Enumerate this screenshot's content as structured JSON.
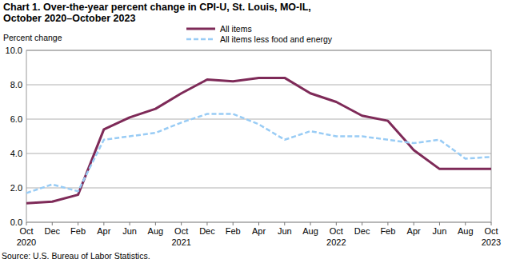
{
  "chart_data": {
    "type": "line",
    "title": "Chart 1. Over-the-year percent change in CPI-U, St. Louis, MO-IL,\nOctober 2020–October 2023",
    "y_label": "Percent change",
    "source": "Source: U.S. Bureau of Labor Statistics.",
    "categories": [
      "Oct\n2020",
      "Dec",
      "Feb",
      "Apr",
      "Jun",
      "Aug",
      "Oct\n2021",
      "Dec",
      "Feb",
      "Apr",
      "Jun",
      "Aug",
      "Oct\n2022",
      "Dec",
      "Feb",
      "Apr",
      "Jun",
      "Aug",
      "Oct\n2023"
    ],
    "series": [
      {
        "name": "All items",
        "color": "#7e2a58",
        "line_style": "solid",
        "values": [
          1.1,
          1.2,
          1.6,
          5.4,
          6.1,
          6.6,
          7.5,
          8.3,
          8.2,
          8.4,
          8.4,
          7.5,
          7.0,
          6.2,
          5.9,
          4.2,
          3.1,
          3.1,
          3.1
        ]
      },
      {
        "name": "All items less food and energy",
        "color": "#99ccf5",
        "line_style": "dashed",
        "values": [
          1.7,
          2.2,
          1.8,
          4.8,
          5.0,
          5.2,
          5.8,
          6.3,
          6.3,
          5.7,
          4.8,
          5.3,
          5.0,
          5.0,
          4.8,
          4.6,
          4.8,
          3.7,
          3.8
        ]
      }
    ],
    "ylim": [
      0,
      10
    ],
    "yticks": [
      {
        "value": 0,
        "label": "0.0"
      },
      {
        "value": 2,
        "label": "2.0"
      },
      {
        "value": 4,
        "label": "4.0"
      },
      {
        "value": 6,
        "label": "6.0"
      },
      {
        "value": 8,
        "label": "8.0"
      },
      {
        "value": 10,
        "label": "10.0"
      }
    ],
    "grid": true,
    "legend": "top"
  }
}
